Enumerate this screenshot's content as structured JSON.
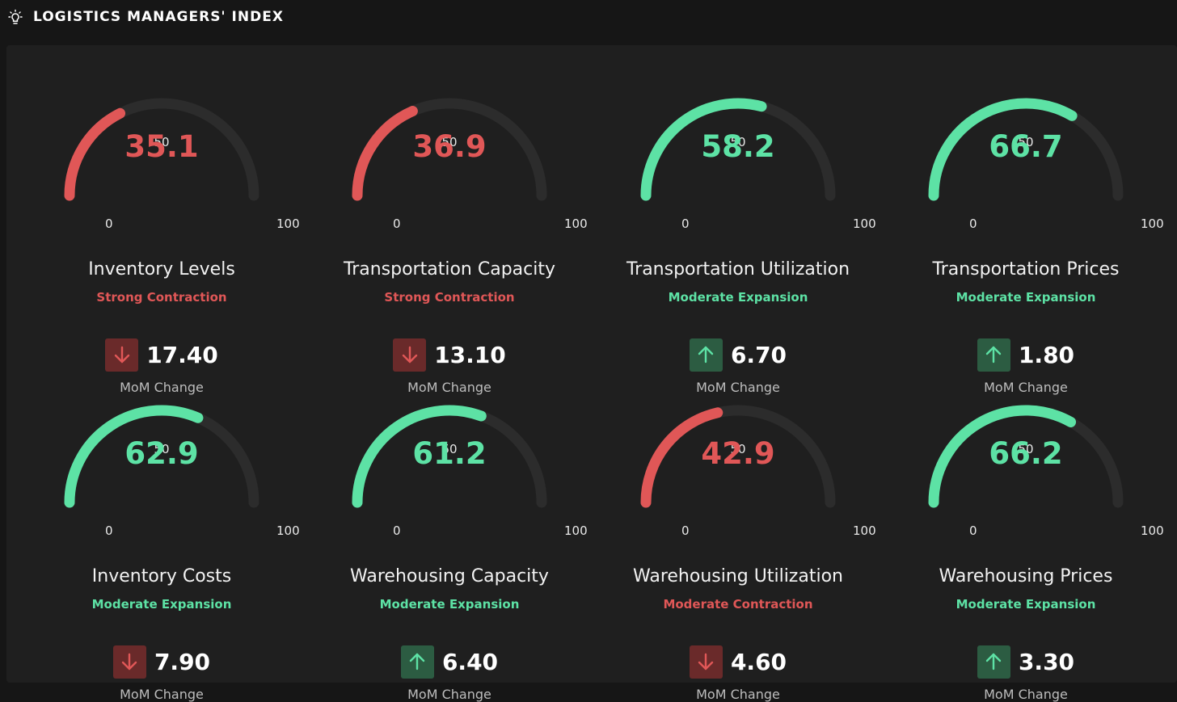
{
  "header": {
    "title": "LOGISTICS MANAGERS' INDEX",
    "icon": "lightbulb-icon"
  },
  "colors": {
    "contraction": "#e05757",
    "expansion": "#5de2a5",
    "track": "#2c2c2c",
    "down_box": "#6a2a2a",
    "up_box": "#2c5c42"
  },
  "gauge_scale": {
    "min_label": "0",
    "mid_label": "50",
    "max_label": "100",
    "min": 0,
    "max": 100
  },
  "change_label": "MoM Change",
  "cards": [
    {
      "value": 35.1,
      "value_text": "35.1",
      "title": "Inventory Levels",
      "status": "Strong Contraction",
      "trend": "down",
      "change": "17.40"
    },
    {
      "value": 36.9,
      "value_text": "36.9",
      "title": "Transportation Capacity",
      "status": "Strong Contraction",
      "trend": "down",
      "change": "13.10"
    },
    {
      "value": 58.2,
      "value_text": "58.2",
      "title": "Transportation Utilization",
      "status": "Moderate Expansion",
      "trend": "up",
      "change": "6.70"
    },
    {
      "value": 66.7,
      "value_text": "66.7",
      "title": "Transportation Prices",
      "status": "Moderate Expansion",
      "trend": "up",
      "change": "1.80"
    },
    {
      "value": 62.9,
      "value_text": "62.9",
      "title": "Inventory Costs",
      "status": "Moderate Expansion",
      "trend": "down",
      "change": "7.90"
    },
    {
      "value": 61.2,
      "value_text": "61.2",
      "title": "Warehousing Capacity",
      "status": "Moderate Expansion",
      "trend": "up",
      "change": "6.40"
    },
    {
      "value": 42.9,
      "value_text": "42.9",
      "title": "Warehousing Utilization",
      "status": "Moderate Contraction",
      "trend": "down",
      "change": "4.60"
    },
    {
      "value": 66.2,
      "value_text": "66.2",
      "title": "Warehousing Prices",
      "status": "Moderate Expansion",
      "trend": "up",
      "change": "3.30"
    }
  ]
}
